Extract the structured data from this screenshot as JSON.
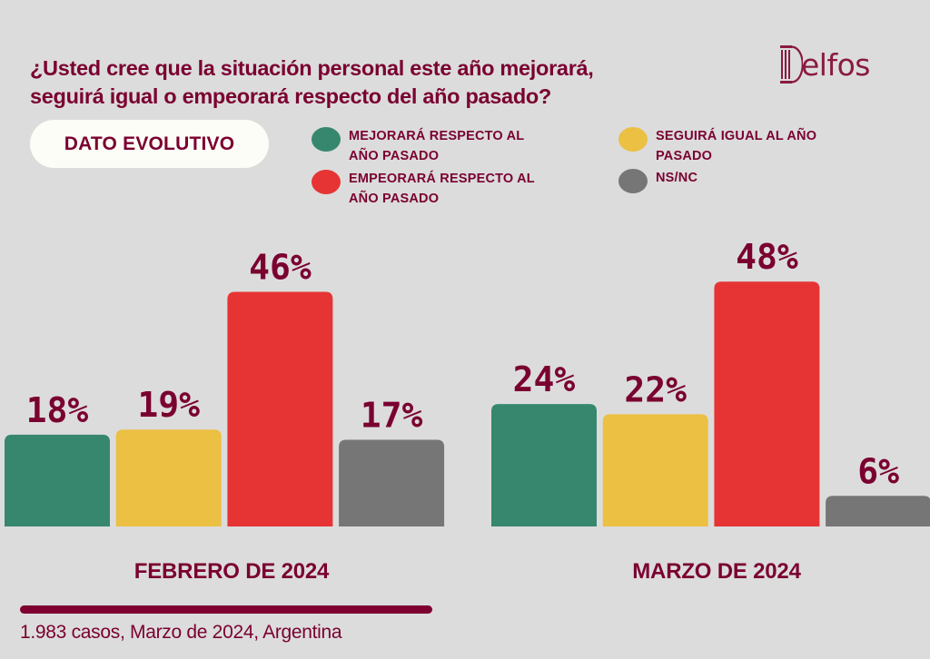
{
  "header": {
    "title_line1": "¿Usted cree que la situación personal este año mejorará,",
    "title_line2": "seguirá igual o empeorará respecto del año pasado?",
    "logo_text": "elfos",
    "brand": "Delfos",
    "badge": "DATO EVOLUTIVO"
  },
  "legend": [
    {
      "label_line1": "MEJORARÁ RESPECTO AL",
      "label_line2": "AÑO PASADO",
      "color": "#37876f"
    },
    {
      "label_line1": "SEGUIRÁ IGUAL AL AÑO",
      "label_line2": "PASADO",
      "color": "#ebc043"
    },
    {
      "label_line1": "EMPEORARÁ RESPECTO AL",
      "label_line2": "AÑO PASADO",
      "color": "#e63434"
    },
    {
      "label_line1": "NS/NC",
      "label_line2": "",
      "color": "#767676"
    }
  ],
  "colors": {
    "text": "#7a0030",
    "background": "#dcdcdc"
  },
  "chart_data": {
    "type": "bar",
    "title": "¿Usted cree que la situación personal este año mejorará, seguirá igual o empeorará respecto del año pasado?",
    "categories": [
      "Mejorará respecto al año pasado",
      "Seguirá igual al año pasado",
      "Empeorará respecto al año pasado",
      "NS/NC"
    ],
    "series": [
      {
        "name": "FEBRERO DE 2024",
        "values": [
          18,
          19,
          46,
          17
        ]
      },
      {
        "name": "MARZO DE 2024",
        "values": [
          24,
          22,
          48,
          6
        ]
      }
    ],
    "value_labels": [
      [
        "18%",
        "19%",
        "46%",
        "17%"
      ],
      [
        "24%",
        "22%",
        "48%",
        "6%"
      ]
    ],
    "unit": "%",
    "xlabel": "",
    "ylabel": "",
    "ylim": [
      0,
      100
    ],
    "grid": false,
    "legend_position": "top"
  },
  "footer": {
    "period_left": "FEBRERO DE 2024",
    "period_right": "MARZO DE 2024",
    "note": "1.983 casos, Marzo de 2024, Argentina"
  }
}
